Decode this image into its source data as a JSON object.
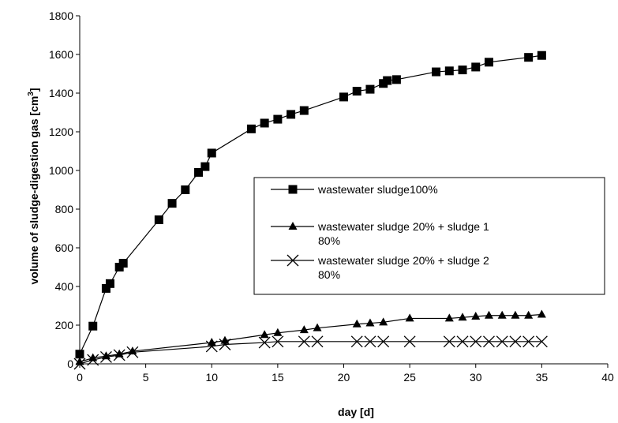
{
  "chart_data": {
    "type": "line",
    "title": "",
    "xlabel": "day [d]",
    "ylabel": "volume of sludge-digestion gas  [cm",
    "ylabel_sup": "3",
    "ylabel_end": "]",
    "xlim": [
      0,
      40
    ],
    "ylim": [
      0,
      1800
    ],
    "xticks": [
      0,
      5,
      10,
      15,
      20,
      25,
      30,
      35,
      40
    ],
    "yticks": [
      0,
      200,
      400,
      600,
      800,
      1000,
      1200,
      1400,
      1600,
      1800
    ],
    "grid": false,
    "legend_position": "right-middle",
    "series": [
      {
        "name": "wastewater sludge100%",
        "marker": "square",
        "x": [
          0,
          1,
          2,
          2.3,
          3,
          3.3,
          6,
          7,
          8,
          9,
          9.5,
          10,
          13,
          14,
          15,
          16,
          17,
          20,
          21,
          22,
          23,
          23.3,
          24,
          27,
          28,
          29,
          30,
          31,
          34,
          35
        ],
        "y": [
          50,
          195,
          390,
          415,
          500,
          520,
          745,
          830,
          900,
          990,
          1020,
          1090,
          1215,
          1245,
          1265,
          1290,
          1310,
          1380,
          1410,
          1420,
          1450,
          1465,
          1470,
          1510,
          1515,
          1520,
          1535,
          1560,
          1585,
          1595
        ]
      },
      {
        "name": "wastewater sludge 20% + sludge 1 80%",
        "legend_lines": [
          "wastewater sludge 20% + sludge 1",
          "80%"
        ],
        "marker": "triangle",
        "x": [
          0,
          1,
          2,
          3,
          4,
          10,
          11,
          14,
          15,
          17,
          18,
          21,
          22,
          23,
          25,
          28,
          29,
          30,
          31,
          32,
          33,
          34,
          35
        ],
        "y": [
          10,
          30,
          40,
          50,
          65,
          110,
          120,
          150,
          160,
          175,
          185,
          205,
          210,
          215,
          235,
          235,
          240,
          245,
          250,
          250,
          250,
          250,
          255
        ]
      },
      {
        "name": "wastewater sludge 20% + sludge 2 80%",
        "legend_lines": [
          "wastewater sludge 20% + sludge 2",
          "80%"
        ],
        "marker": "x",
        "x": [
          0,
          1,
          2,
          3,
          4,
          10,
          11,
          14,
          15,
          17,
          18,
          21,
          22,
          23,
          25,
          28,
          29,
          30,
          31,
          32,
          33,
          34,
          35
        ],
        "y": [
          0,
          20,
          35,
          45,
          60,
          90,
          100,
          110,
          115,
          115,
          115,
          115,
          115,
          115,
          115,
          115,
          115,
          115,
          115,
          115,
          115,
          115,
          115
        ]
      }
    ]
  }
}
